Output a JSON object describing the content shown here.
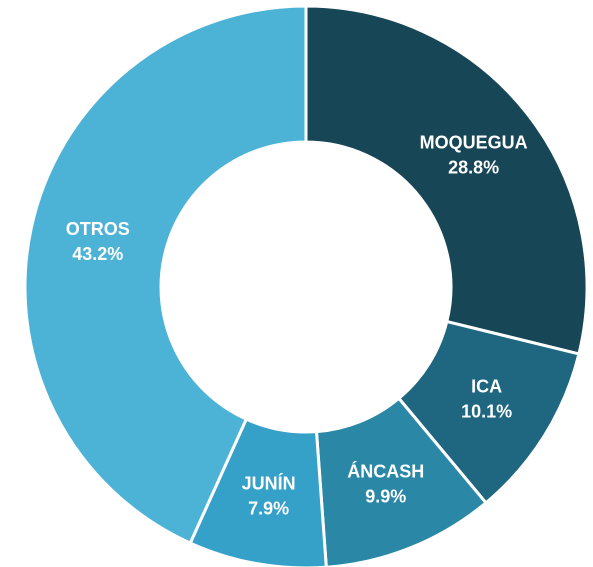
{
  "chart_data": {
    "type": "donut",
    "categories": [
      "MOQUEGUA",
      "ICA",
      "ÁNCASH",
      "JUNÍN",
      "OTROS"
    ],
    "values": [
      28.8,
      10.1,
      9.9,
      7.9,
      43.2
    ],
    "value_labels": [
      "28.8%",
      "10.1%",
      "9.9%",
      "7.9%",
      "43.2%"
    ],
    "colors": [
      "#174656",
      "#1f6680",
      "#2a88a6",
      "#35a0c8",
      "#4db3d6"
    ]
  }
}
